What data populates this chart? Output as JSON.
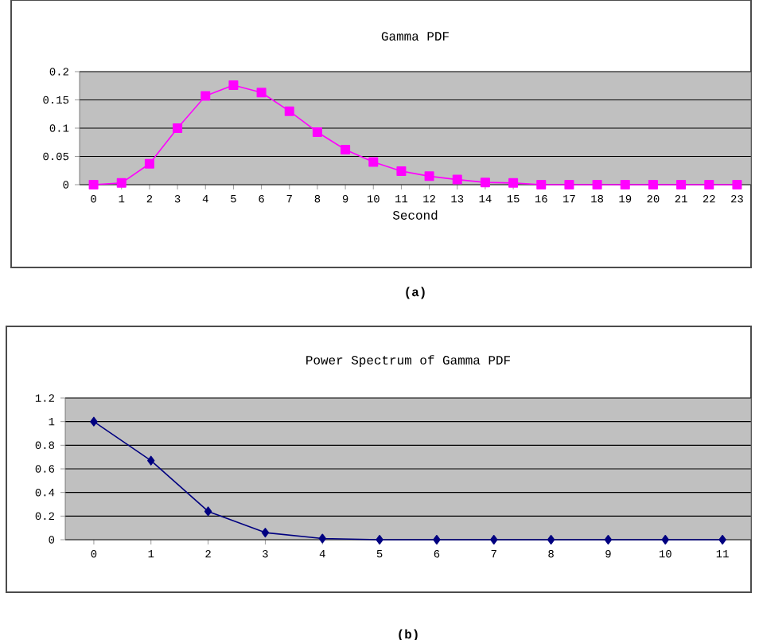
{
  "chart_data": [
    {
      "type": "line",
      "title": "Gamma PDF",
      "xlabel": "Second",
      "categories": [
        "0",
        "1",
        "2",
        "3",
        "4",
        "5",
        "6",
        "7",
        "8",
        "9",
        "10",
        "11",
        "12",
        "13",
        "14",
        "15",
        "16",
        "17",
        "18",
        "19",
        "20",
        "21",
        "22",
        "23"
      ],
      "series": [
        {
          "color": "#ff00ff",
          "values": [
            0,
            0.003,
            0.037,
            0.1,
            0.157,
            0.176,
            0.163,
            0.13,
            0.093,
            0.062,
            0.04,
            0.024,
            0.015,
            0.009,
            0.004,
            0.003,
            0,
            0,
            0,
            0,
            0,
            0,
            0,
            0
          ]
        }
      ],
      "ylim": [
        0,
        0.2
      ],
      "yticks": [
        0,
        0.05,
        0.1,
        0.15,
        0.2
      ],
      "grid": "y",
      "marker": "square",
      "annotations": [
        "(a)"
      ]
    },
    {
      "type": "line",
      "title": "Power Spectrum of Gamma PDF",
      "categories": [
        "0",
        "1",
        "2",
        "3",
        "4",
        "5",
        "6",
        "7",
        "8",
        "9",
        "10",
        "11"
      ],
      "series": [
        {
          "color": "#000080",
          "values": [
            1,
            0.67,
            0.24,
            0.06,
            0.01,
            0,
            0,
            0,
            0,
            0,
            0,
            0
          ]
        }
      ],
      "ylim": [
        0,
        1.2
      ],
      "yticks": [
        0,
        0.2,
        0.4,
        0.6,
        0.8,
        1,
        1.2
      ],
      "grid": "y",
      "marker": "diamond",
      "annotations": [
        "(b)"
      ]
    }
  ]
}
